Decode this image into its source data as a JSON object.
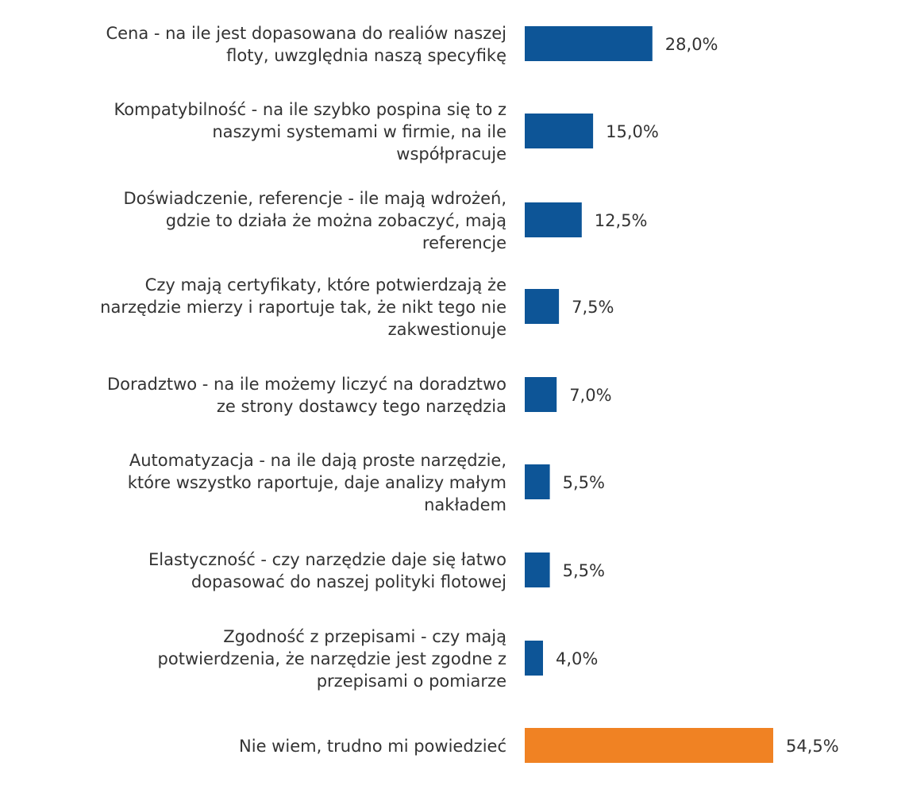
{
  "colors": {
    "primary": "#0d5597",
    "highlight": "#f08223",
    "text": "#333333"
  },
  "chart_data": {
    "type": "bar",
    "orientation": "horizontal",
    "unit": "%",
    "xlim": [
      0,
      54.5
    ],
    "categories": [
      {
        "lines": [
          "Cena - na ile jest dopasowana do realiów naszej",
          "floty, uwzględnia naszą specyfikę"
        ],
        "value": 28.0,
        "value_label": "28,0%",
        "highlight": false
      },
      {
        "lines": [
          "Kompatybilność  - na ile szybko pospina się to z",
          "naszymi systemami w firmie, na ile",
          "współpracuje"
        ],
        "value": 15.0,
        "value_label": "15,0%",
        "highlight": false
      },
      {
        "lines": [
          "Doświadczenie, referencje - ile mają wdrożeń,",
          "gdzie to działa że można zobaczyć, mają",
          "referencje"
        ],
        "value": 12.5,
        "value_label": "12,5%",
        "highlight": false
      },
      {
        "lines": [
          "Czy mają certyfikaty, które potwierdzają że",
          "narzędzie mierzy i raportuje tak, że nikt tego nie",
          "zakwestionuje"
        ],
        "value": 7.5,
        "value_label": "7,5%",
        "highlight": false
      },
      {
        "lines": [
          "Doradztwo  - na ile możemy liczyć na doradztwo",
          "ze strony dostawcy tego narzędzia"
        ],
        "value": 7.0,
        "value_label": "7,0%",
        "highlight": false
      },
      {
        "lines": [
          "Automatyzacja - na ile dają proste narzędzie,",
          "które wszystko raportuje, daje analizy małym",
          "nakładem"
        ],
        "value": 5.5,
        "value_label": "5,5%",
        "highlight": false
      },
      {
        "lines": [
          "Elastyczność - czy narzędzie daje się łatwo",
          "dopasować do naszej polityki flotowej"
        ],
        "value": 5.5,
        "value_label": "5,5%",
        "highlight": false
      },
      {
        "lines": [
          "Zgodność z przepisami - czy mają",
          "potwierdzenia, że narzędzie jest zgodne z",
          "przepisami o pomiarze"
        ],
        "value": 4.0,
        "value_label": "4,0%",
        "highlight": false
      },
      {
        "lines": [
          "Nie wiem, trudno mi powiedzieć"
        ],
        "value": 54.5,
        "value_label": "54,5%",
        "highlight": true
      }
    ]
  }
}
